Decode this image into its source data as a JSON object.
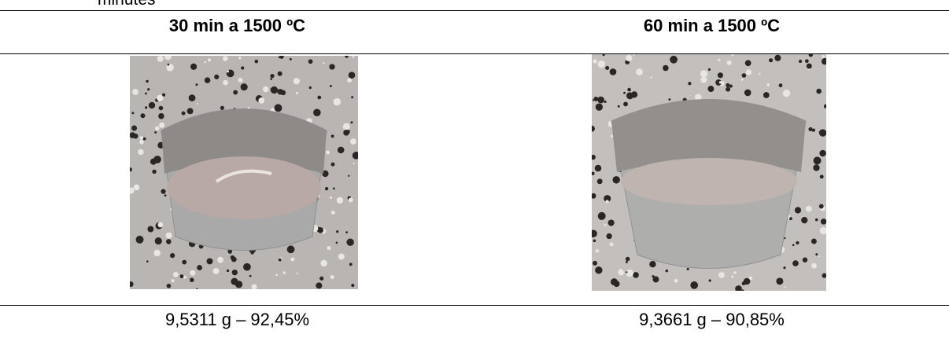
{
  "caption_fragment": "minutes",
  "table": {
    "header": [
      "30 min a 1500 ºC",
      "60 min a 1500 ºC"
    ],
    "rows": [
      [
        "9,5311 g – 92,45%",
        "9,3661 g – 90,85%"
      ]
    ]
  }
}
